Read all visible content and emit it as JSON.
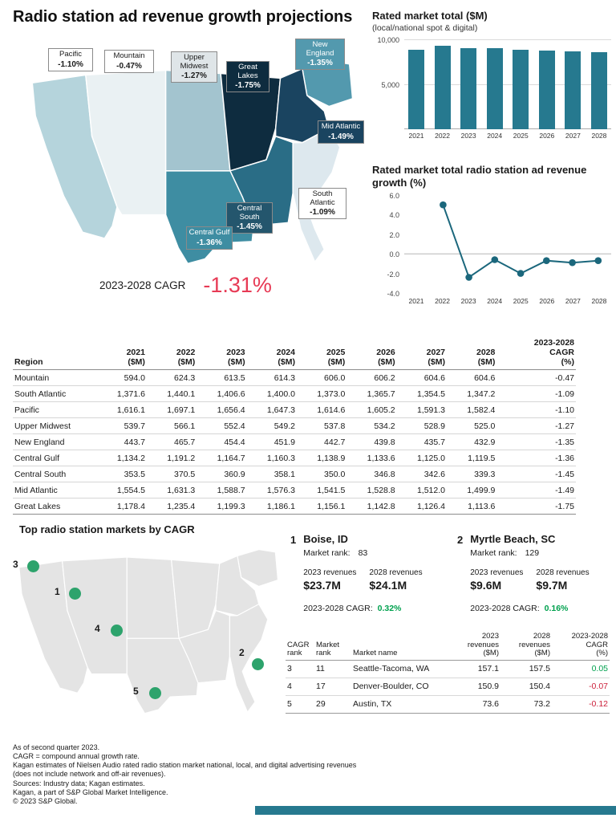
{
  "page": {
    "title": "Radio station ad revenue growth projections",
    "cagr_label": "2023-2028 CAGR",
    "cagr_value": "-1.31%"
  },
  "colors": {
    "accent_teal": "#26798f",
    "line_teal": "#1b677c",
    "highlight_red": "#e73a55",
    "positive_green": "#00a14e",
    "negative_red": "#cc1f3a",
    "dot_green": "#2da36c"
  },
  "map": {
    "regions": [
      {
        "id": "pacific",
        "name": "Pacific",
        "value": "-1.10%",
        "fill": "#b5d4dc",
        "label_bg": "#ffffff",
        "label_fg": "#1a1a1a"
      },
      {
        "id": "mountain",
        "name": "Mountain",
        "value": "-0.47%",
        "fill": "#eaf1f3",
        "label_bg": "#ffffff",
        "label_fg": "#1a1a1a"
      },
      {
        "id": "upper_midwest",
        "name": "Upper Midwest",
        "value": "-1.27%",
        "fill": "#a3c4cf",
        "label_bg": "#dfe5e8",
        "label_fg": "#1a1a1a"
      },
      {
        "id": "great_lakes",
        "name": "Great Lakes",
        "value": "-1.75%",
        "fill": "#0e2c3f",
        "label_bg": "#0e2c3f",
        "label_fg": "#ffffff"
      },
      {
        "id": "new_england",
        "name": "New England",
        "value": "-1.35%",
        "fill": "#5399ae",
        "label_bg": "#5399ae",
        "label_fg": "#ffffff"
      },
      {
        "id": "mid_atlantic",
        "name": "Mid Atlantic",
        "value": "-1.49%",
        "fill": "#1a4460",
        "label_bg": "#1a4460",
        "label_fg": "#ffffff"
      },
      {
        "id": "south_atlantic",
        "name": "South Atlantic",
        "value": "-1.09%",
        "fill": "#dde8ee",
        "label_bg": "#ffffff",
        "label_fg": "#1a1a1a"
      },
      {
        "id": "central_south",
        "name": "Central South",
        "value": "-1.45%",
        "fill": "#2a6d86",
        "label_bg": "#24566d",
        "label_fg": "#ffffff"
      },
      {
        "id": "central_gulf",
        "name": "Central Gulf",
        "value": "-1.36%",
        "fill": "#3e8da2",
        "label_bg": "#3e8da2",
        "label_fg": "#ffffff"
      }
    ]
  },
  "chart_data": [
    {
      "type": "bar",
      "title": "Rated market total ($M)",
      "subtitle": "(local/national spot & digital)",
      "categories": [
        "2021",
        "2022",
        "2023",
        "2024",
        "2025",
        "2026",
        "2027",
        "2028"
      ],
      "values": [
        8786,
        9222,
        8997,
        8944,
        8761,
        8703,
        8621,
        8564
      ],
      "ylim": [
        0,
        10000
      ],
      "ytick_labels": [
        "10,000",
        "5,000"
      ],
      "bar_color": "#26798f",
      "grid": true,
      "legend": "none"
    },
    {
      "type": "line",
      "title": "Rated market total radio station ad revenue growth (%)",
      "x": [
        "2021",
        "2022",
        "2023",
        "2024",
        "2025",
        "2026",
        "2027",
        "2028"
      ],
      "values": [
        null,
        5.0,
        -2.4,
        -0.6,
        -2.0,
        -0.7,
        -0.9,
        -0.7
      ],
      "ylim": [
        -4,
        6
      ],
      "ytick_labels": [
        "6.0",
        "4.0",
        "2.0",
        "0.0",
        "-2.0",
        "-4.0"
      ],
      "line_color": "#1b677c",
      "marker": "circle",
      "grid": "zero-line-only",
      "legend": "none"
    }
  ],
  "regions_table": {
    "region_header": "Region",
    "unit_label": "($M)",
    "year_headers": [
      "2021",
      "2022",
      "2023",
      "2024",
      "2025",
      "2026",
      "2027",
      "2028"
    ],
    "cagr_header_lines": [
      "2023-2028",
      "CAGR",
      "(%)"
    ],
    "rows": [
      {
        "region": "Mountain",
        "values": [
          "594.0",
          "624.3",
          "613.5",
          "614.3",
          "606.0",
          "606.2",
          "604.6",
          "604.6"
        ],
        "cagr": "-0.47"
      },
      {
        "region": "South Atlantic",
        "values": [
          "1,371.6",
          "1,440.1",
          "1,406.6",
          "1,400.0",
          "1,373.0",
          "1,365.7",
          "1,354.5",
          "1,347.2"
        ],
        "cagr": "-1.09"
      },
      {
        "region": "Pacific",
        "values": [
          "1,616.1",
          "1,697.1",
          "1,656.4",
          "1,647.3",
          "1,614.6",
          "1,605.2",
          "1,591.3",
          "1,582.4"
        ],
        "cagr": "-1.10"
      },
      {
        "region": "Upper Midwest",
        "values": [
          "539.7",
          "566.1",
          "552.4",
          "549.2",
          "537.8",
          "534.2",
          "528.9",
          "525.0"
        ],
        "cagr": "-1.27"
      },
      {
        "region": "New England",
        "values": [
          "443.7",
          "465.7",
          "454.4",
          "451.9",
          "442.7",
          "439.8",
          "435.7",
          "432.9"
        ],
        "cagr": "-1.35"
      },
      {
        "region": "Central Gulf",
        "values": [
          "1,134.2",
          "1,191.2",
          "1,164.7",
          "1,160.3",
          "1,138.9",
          "1,133.6",
          "1,125.0",
          "1,119.5"
        ],
        "cagr": "-1.36"
      },
      {
        "region": "Central South",
        "values": [
          "353.5",
          "370.5",
          "360.9",
          "358.1",
          "350.0",
          "346.8",
          "342.6",
          "339.3"
        ],
        "cagr": "-1.45"
      },
      {
        "region": "Mid Atlantic",
        "values": [
          "1,554.5",
          "1,631.3",
          "1,588.7",
          "1,576.3",
          "1,541.5",
          "1,528.8",
          "1,512.0",
          "1,499.9"
        ],
        "cagr": "-1.49"
      },
      {
        "region": "Great Lakes",
        "values": [
          "1,178.4",
          "1,235.4",
          "1,199.3",
          "1,186.1",
          "1,156.1",
          "1,142.8",
          "1,126.4",
          "1,113.6"
        ],
        "cagr": "-1.75"
      }
    ]
  },
  "top_markets": {
    "heading": "Top radio station markets by CAGR",
    "dots": [
      {
        "n": "3"
      },
      {
        "n": "1"
      },
      {
        "n": "4"
      },
      {
        "n": "2"
      },
      {
        "n": "5"
      }
    ],
    "cards": [
      {
        "rank": "1",
        "name": "Boise, ID",
        "market_rank_label": "Market rank:",
        "market_rank": "83",
        "rev_2023_label": "2023 revenues",
        "rev_2023": "$23.7M",
        "rev_2028_label": "2028 revenues",
        "rev_2028": "$24.1M",
        "cagr_label": "2023-2028 CAGR:",
        "cagr": "0.32%"
      },
      {
        "rank": "2",
        "name": "Myrtle Beach, SC",
        "market_rank_label": "Market rank:",
        "market_rank": "129",
        "rev_2023_label": "2023 revenues",
        "rev_2023": "$9.6M",
        "rev_2028_label": "2028 revenues",
        "rev_2028": "$9.7M",
        "cagr_label": "2023-2028 CAGR:",
        "cagr": "0.16%"
      }
    ],
    "table": {
      "header_lines": [
        [
          "CAGR",
          "rank"
        ],
        [
          "Market",
          "rank"
        ],
        [
          "Market name"
        ],
        [
          "2023",
          "revenues",
          "($M)"
        ],
        [
          "2028",
          "revenues",
          "($M)"
        ],
        [
          "2023-2028",
          "CAGR",
          "(%)"
        ]
      ],
      "rows": [
        {
          "cagr_rank": "3",
          "market_rank": "11",
          "name": "Seattle-Tacoma, WA",
          "rev_2023": "157.1",
          "rev_2028": "157.5",
          "cagr": "0.05"
        },
        {
          "cagr_rank": "4",
          "market_rank": "17",
          "name": "Denver-Boulder, CO",
          "rev_2023": "150.9",
          "rev_2028": "150.4",
          "cagr": "-0.07"
        },
        {
          "cagr_rank": "5",
          "market_rank": "29",
          "name": "Austin, TX",
          "rev_2023": "73.6",
          "rev_2028": "73.2",
          "cagr": "-0.12"
        }
      ]
    }
  },
  "footnotes": [
    "As of second quarter 2023.",
    "CAGR = compound annual growth rate.",
    "Kagan estimates of Nielsen Audio rated radio station market national, local, and digital advertising revenues",
    "(does not include network and off-air revenues).",
    "Sources: Industry data; Kagan estimates.",
    "Kagan, a part of S&P Global Market Intelligence.",
    "© 2023 S&P Global."
  ]
}
